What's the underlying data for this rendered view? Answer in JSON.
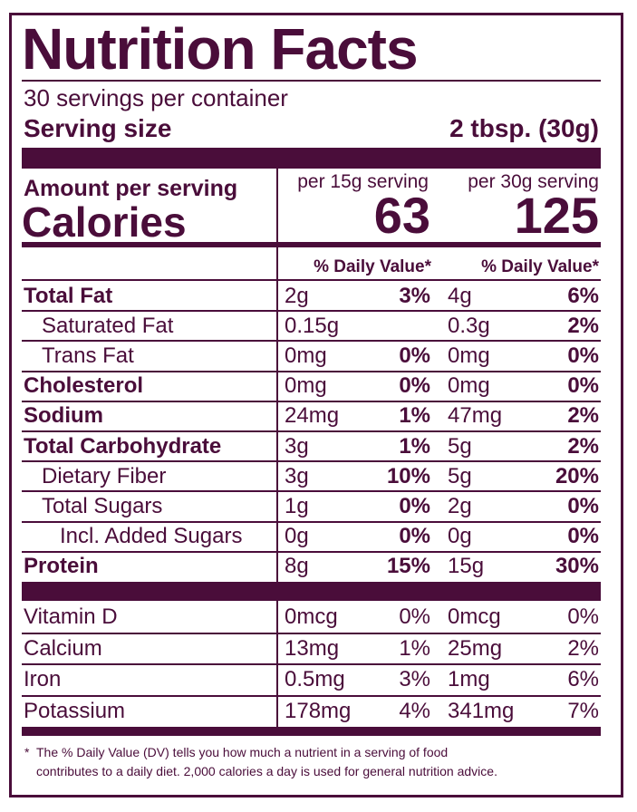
{
  "title": "Nutrition Facts",
  "servings_per_container": "30 servings per container",
  "serving_size": {
    "label": "Serving size",
    "value": "2 tbsp. (30g)"
  },
  "amount_per_serving": "Amount per serving",
  "calories": {
    "label": "Calories",
    "columns": [
      {
        "header": "per 15g serving",
        "value": "63"
      },
      {
        "header": "per 30g serving",
        "value": "125"
      }
    ]
  },
  "dv_headers": [
    "% Daily Value*",
    "% Daily Value*"
  ],
  "nutrients": [
    {
      "name": "Total Fat",
      "bold": true,
      "indent": 0,
      "col1": {
        "amount": "2g",
        "dv": "3%"
      },
      "col2": {
        "amount": "4g",
        "dv": "6%"
      }
    },
    {
      "name": "Saturated Fat",
      "bold": false,
      "indent": 1,
      "col1": {
        "amount": "0.15g"
      },
      "col2": {
        "amount": "0.3g",
        "dv": "2%"
      }
    },
    {
      "name": "Trans Fat",
      "bold": false,
      "indent": 1,
      "col1": {
        "amount": "0mg",
        "dv": "0%"
      },
      "col2": {
        "amount": "0mg",
        "dv": "0%"
      }
    },
    {
      "name": "Cholesterol",
      "bold": true,
      "indent": 0,
      "col1": {
        "amount": "0mg",
        "dv": "0%"
      },
      "col2": {
        "amount": "0mg",
        "dv": "0%"
      }
    },
    {
      "name": "Sodium",
      "bold": true,
      "indent": 0,
      "col1": {
        "amount": "24mg",
        "dv": "1%"
      },
      "col2": {
        "amount": "47mg",
        "dv": "2%"
      }
    },
    {
      "name": "Total Carbohydrate",
      "bold": true,
      "indent": 0,
      "col1": {
        "amount": "3g",
        "dv": "1%"
      },
      "col2": {
        "amount": "5g",
        "dv": "2%"
      }
    },
    {
      "name": "Dietary Fiber",
      "bold": false,
      "indent": 1,
      "col1": {
        "amount": "3g",
        "dv": "10%"
      },
      "col2": {
        "amount": "5g",
        "dv": "20%"
      }
    },
    {
      "name": "Total Sugars",
      "bold": false,
      "indent": 1,
      "col1": {
        "amount": "1g",
        "dv": "0%"
      },
      "col2": {
        "amount": "2g",
        "dv": "0%"
      }
    },
    {
      "name": "Incl. Added Sugars",
      "bold": false,
      "indent": 2,
      "col1": {
        "amount": "0g",
        "dv": "0%"
      },
      "col2": {
        "amount": "0g",
        "dv": "0%"
      }
    },
    {
      "name": "Protein",
      "bold": true,
      "indent": 0,
      "col1": {
        "amount": "8g",
        "dv": "15%"
      },
      "col2": {
        "amount": "15g",
        "dv": "30%"
      }
    }
  ],
  "vitamins": [
    {
      "name": "Vitamin D",
      "col1": {
        "amount": "0mcg",
        "dv": "0%"
      },
      "col2": {
        "amount": "0mcg",
        "dv": "0%"
      }
    },
    {
      "name": "Calcium",
      "col1": {
        "amount": "13mg",
        "dv": "1%"
      },
      "col2": {
        "amount": "25mg",
        "dv": "2%"
      }
    },
    {
      "name": "Iron",
      "col1": {
        "amount": "0.5mg",
        "dv": "3%"
      },
      "col2": {
        "amount": "1mg",
        "dv": "6%"
      }
    },
    {
      "name": "Potassium",
      "col1": {
        "amount": "178mg",
        "dv": "4%"
      },
      "col2": {
        "amount": "341mg",
        "dv": "7%"
      }
    }
  ],
  "footnote": [
    "*",
    "The % Daily Value (DV) tells you how much a nutrient in a serving of food",
    "contributes to a daily diet. 2,000 calories a day is used for general nutrition advice."
  ]
}
